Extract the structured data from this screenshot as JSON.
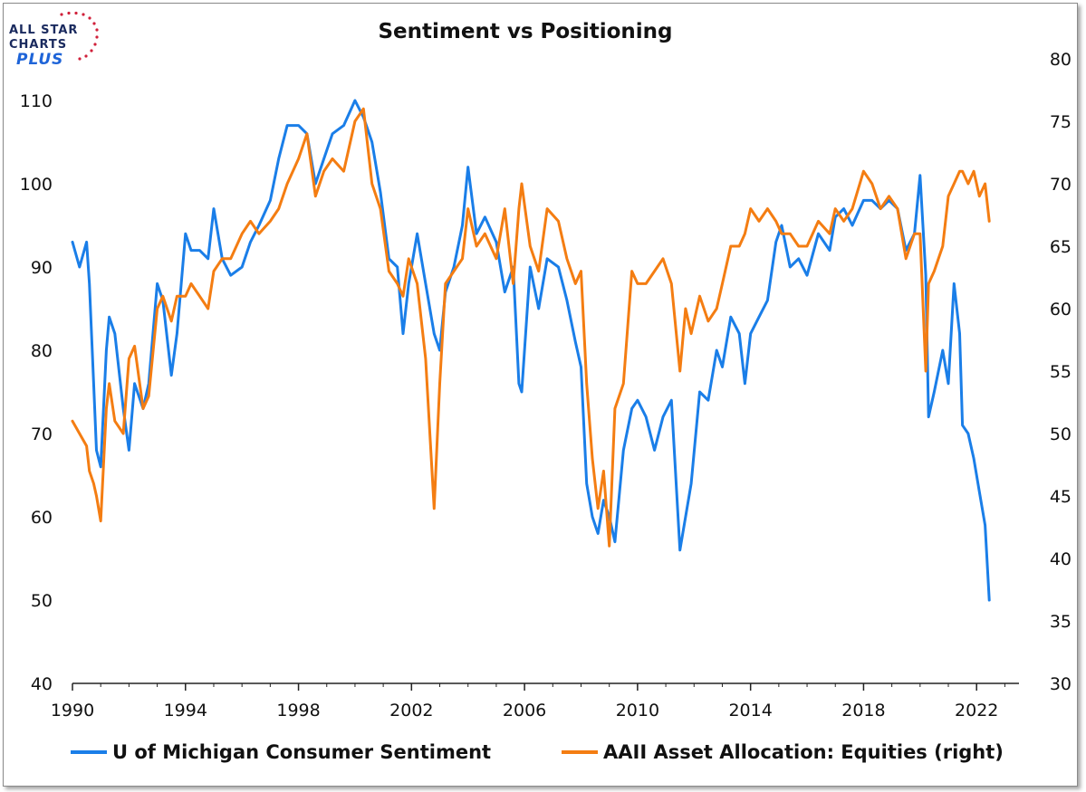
{
  "logo": {
    "line1": "ALL STAR",
    "line2": "CHARTS",
    "line3": "PLUS"
  },
  "colors": {
    "sentiment": "#1a7ee8",
    "equities": "#f47d12",
    "axis": "#111111"
  },
  "chart_data": {
    "type": "line",
    "title": "Sentiment vs Positioning",
    "xlabel": "",
    "ylabel_left": "",
    "ylabel_right": "",
    "x_ticks": [
      "1990",
      "1994",
      "1998",
      "2002",
      "2006",
      "2010",
      "2014",
      "2018",
      "2022"
    ],
    "xlim": [
      1990,
      2023.5
    ],
    "ylim_left": [
      40,
      115
    ],
    "ylim_right": [
      30,
      80
    ],
    "yticks_left": [
      "40",
      "50",
      "60",
      "70",
      "80",
      "90",
      "100",
      "110"
    ],
    "yticks_right": [
      "30",
      "35",
      "40",
      "45",
      "50",
      "55",
      "60",
      "65",
      "70",
      "75",
      "80"
    ],
    "legend_position": "bottom",
    "series": [
      {
        "name": "U of Michigan Consumer Sentiment",
        "axis": "left",
        "x": [
          1990.0,
          1990.25,
          1990.5,
          1990.6,
          1990.75,
          1990.85,
          1991.0,
          1991.2,
          1991.3,
          1991.5,
          1991.8,
          1992.0,
          1992.2,
          1992.5,
          1992.7,
          1993.0,
          1993.2,
          1993.5,
          1993.7,
          1994.0,
          1994.2,
          1994.5,
          1994.8,
          1995.0,
          1995.3,
          1995.6,
          1996.0,
          1996.3,
          1996.6,
          1997.0,
          1997.3,
          1997.6,
          1998.0,
          1998.3,
          1998.6,
          1998.9,
          1999.2,
          1999.6,
          2000.0,
          2000.3,
          2000.6,
          2000.9,
          2001.2,
          2001.5,
          2001.7,
          2001.9,
          2002.2,
          2002.5,
          2002.8,
          2003.0,
          2003.2,
          2003.5,
          2003.8,
          2004.0,
          2004.3,
          2004.6,
          2005.0,
          2005.3,
          2005.6,
          2005.8,
          2005.9,
          2006.2,
          2006.5,
          2006.8,
          2007.2,
          2007.5,
          2007.8,
          2008.0,
          2008.2,
          2008.4,
          2008.6,
          2008.8,
          2009.0,
          2009.2,
          2009.5,
          2009.8,
          2010.0,
          2010.3,
          2010.6,
          2010.9,
          2011.2,
          2011.5,
          2011.7,
          2011.9,
          2012.2,
          2012.5,
          2012.8,
          2013.0,
          2013.3,
          2013.6,
          2013.8,
          2014.0,
          2014.3,
          2014.6,
          2014.9,
          2015.1,
          2015.4,
          2015.7,
          2016.0,
          2016.4,
          2016.8,
          2017.0,
          2017.3,
          2017.6,
          2018.0,
          2018.3,
          2018.6,
          2018.9,
          2019.2,
          2019.5,
          2019.8,
          2020.0,
          2020.2,
          2020.3,
          2020.5,
          2020.8,
          2021.0,
          2021.2,
          2021.4,
          2021.5,
          2021.7,
          2021.9,
          2022.1,
          2022.3,
          2022.45
        ],
        "values": [
          93,
          90,
          93,
          88,
          76,
          68,
          66,
          80,
          84,
          82,
          73,
          68,
          76,
          73,
          76,
          88,
          86,
          77,
          82,
          94,
          92,
          92,
          91,
          97,
          91,
          89,
          90,
          93,
          95,
          98,
          103,
          107,
          107,
          106,
          100,
          103,
          106,
          107,
          110,
          108,
          105,
          99,
          91,
          90,
          82,
          88,
          94,
          88,
          82,
          80,
          87,
          90,
          95,
          102,
          94,
          96,
          93,
          87,
          90,
          76,
          75,
          90,
          85,
          91,
          90,
          86,
          81,
          78,
          64,
          60,
          58,
          62,
          60,
          57,
          68,
          73,
          74,
          72,
          68,
          72,
          74,
          56,
          60,
          64,
          75,
          74,
          80,
          78,
          84,
          82,
          76,
          82,
          84,
          86,
          93,
          95,
          90,
          91,
          89,
          94,
          92,
          96,
          97,
          95,
          98,
          98,
          97,
          98,
          97,
          92,
          94,
          101,
          89,
          72,
          75,
          80,
          76,
          88,
          82,
          71,
          70,
          67,
          63,
          59,
          50
        ]
      },
      {
        "name": "AAII Asset Allocation: Equities (right)",
        "axis": "right",
        "x": [
          1990.0,
          1990.25,
          1990.5,
          1990.6,
          1990.75,
          1990.85,
          1991.0,
          1991.2,
          1991.3,
          1991.5,
          1991.8,
          1992.0,
          1992.2,
          1992.5,
          1992.7,
          1993.0,
          1993.2,
          1993.5,
          1993.7,
          1994.0,
          1994.2,
          1994.5,
          1994.8,
          1995.0,
          1995.3,
          1995.6,
          1996.0,
          1996.3,
          1996.6,
          1997.0,
          1997.3,
          1997.6,
          1998.0,
          1998.3,
          1998.6,
          1998.9,
          1999.2,
          1999.6,
          2000.0,
          2000.3,
          2000.6,
          2000.9,
          2001.2,
          2001.5,
          2001.7,
          2001.9,
          2002.2,
          2002.5,
          2002.8,
          2003.0,
          2003.2,
          2003.5,
          2003.8,
          2004.0,
          2004.3,
          2004.6,
          2005.0,
          2005.3,
          2005.6,
          2005.8,
          2005.9,
          2006.2,
          2006.5,
          2006.8,
          2007.2,
          2007.5,
          2007.8,
          2008.0,
          2008.2,
          2008.4,
          2008.6,
          2008.8,
          2009.0,
          2009.2,
          2009.5,
          2009.8,
          2010.0,
          2010.3,
          2010.6,
          2010.9,
          2011.2,
          2011.5,
          2011.7,
          2011.9,
          2012.2,
          2012.5,
          2012.8,
          2013.0,
          2013.3,
          2013.6,
          2013.8,
          2014.0,
          2014.3,
          2014.6,
          2014.9,
          2015.1,
          2015.4,
          2015.7,
          2016.0,
          2016.4,
          2016.8,
          2017.0,
          2017.3,
          2017.6,
          2018.0,
          2018.3,
          2018.6,
          2018.9,
          2019.2,
          2019.5,
          2019.8,
          2020.0,
          2020.2,
          2020.3,
          2020.5,
          2020.8,
          2021.0,
          2021.2,
          2021.4,
          2021.5,
          2021.7,
          2021.9,
          2022.1,
          2022.3,
          2022.45
        ],
        "values": [
          51,
          50,
          49,
          47,
          46,
          45,
          43,
          52,
          54,
          51,
          50,
          56,
          57,
          52,
          53,
          60,
          61,
          59,
          61,
          61,
          62,
          61,
          60,
          63,
          64,
          64,
          66,
          67,
          66,
          67,
          68,
          70,
          72,
          74,
          69,
          71,
          72,
          71,
          75,
          76,
          70,
          68,
          63,
          62,
          61,
          64,
          62,
          56,
          44,
          54,
          62,
          63,
          64,
          68,
          65,
          66,
          64,
          68,
          62,
          68,
          70,
          65,
          63,
          68,
          67,
          64,
          62,
          63,
          54,
          48,
          44,
          47,
          41,
          52,
          54,
          63,
          62,
          62,
          63,
          64,
          62,
          55,
          60,
          58,
          61,
          59,
          60,
          62,
          65,
          65,
          66,
          68,
          67,
          68,
          67,
          66,
          66,
          65,
          65,
          67,
          66,
          68,
          67,
          68,
          71,
          70,
          68,
          69,
          68,
          64,
          66,
          66,
          55,
          62,
          63,
          65,
          69,
          70,
          71,
          71,
          70,
          71,
          69,
          70,
          67
        ]
      }
    ]
  }
}
